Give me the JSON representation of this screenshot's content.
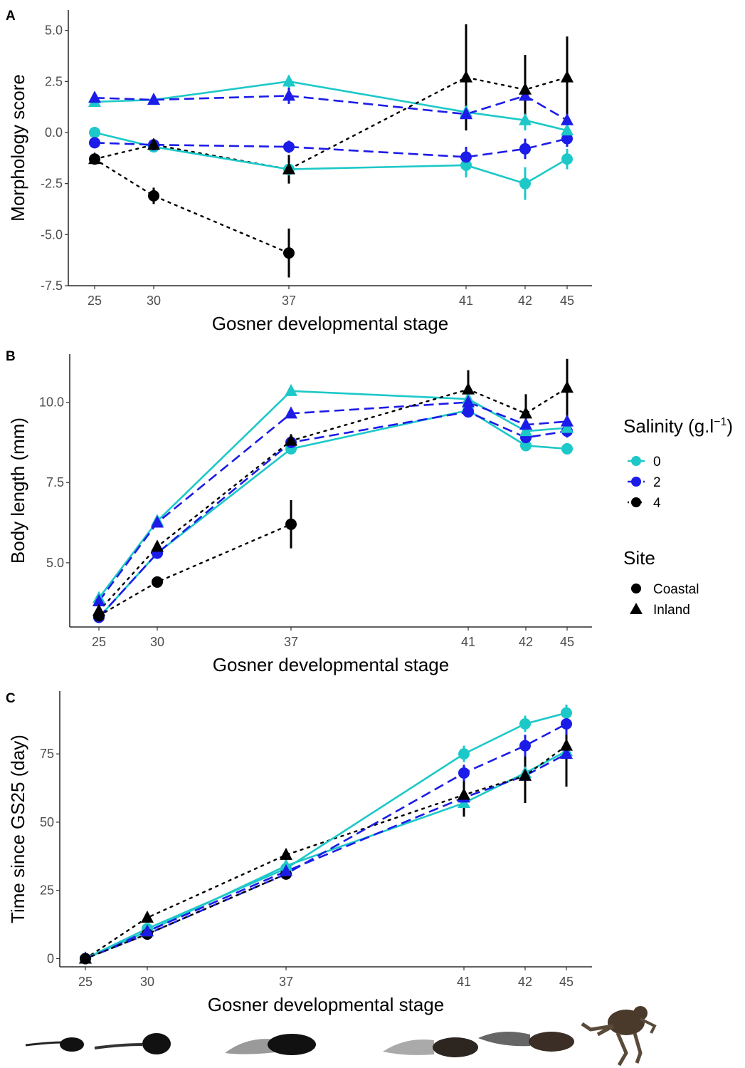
{
  "legend": {
    "salinity_title": "Salinity (g.l",
    "salinity_sup": "−1",
    "salinity_close": ")",
    "salinity_levels": [
      {
        "label": "0",
        "color": "#1dc8c8",
        "linestyle": "solid"
      },
      {
        "label": "2",
        "color": "#1c1ce8",
        "linestyle": "dashed"
      },
      {
        "label": "4",
        "color": "#000000",
        "linestyle": "dotted"
      }
    ],
    "site_title": "Site",
    "sites": [
      {
        "label": "Coastal",
        "shape": "circle"
      },
      {
        "label": "Inland",
        "shape": "triangle"
      }
    ]
  },
  "chart_data": [
    {
      "panel": "A",
      "type": "line",
      "xlabel": "Gosner developmental stage",
      "ylabel": "Morphology score",
      "x_ticks": [
        25,
        30,
        37,
        41,
        42,
        45
      ],
      "y_ticks": [
        5.0,
        2.5,
        0.0,
        -2.5,
        -5.0,
        -7.5
      ],
      "y_tick_labels": [
        "5.0",
        "2.5",
        "0.0",
        "-2.5",
        "-5.0",
        "-7.5"
      ],
      "ylim": [
        -7.5,
        6.0
      ],
      "series": [
        {
          "salinity": "0",
          "site": "Inland",
          "points": [
            [
              25,
              1.5,
              0.15
            ],
            [
              30,
              1.6,
              0.15
            ],
            [
              37,
              2.5,
              0.3
            ],
            [
              41,
              1.0,
              0.5
            ],
            [
              42,
              0.6,
              0.5
            ],
            [
              45,
              0.1,
              0.3
            ]
          ]
        },
        {
          "salinity": "2",
          "site": "Inland",
          "points": [
            [
              25,
              1.7,
              0.15
            ],
            [
              30,
              1.6,
              0.15
            ],
            [
              37,
              1.8,
              0.4
            ],
            [
              41,
              0.9,
              0.7
            ],
            [
              42,
              1.8,
              0.8
            ],
            [
              45,
              0.6,
              0.5
            ]
          ]
        },
        {
          "salinity": "4",
          "site": "Inland",
          "points": [
            [
              25,
              -1.3,
              0.2
            ],
            [
              30,
              -0.6,
              0.2
            ],
            [
              37,
              -1.8,
              0.7
            ],
            [
              41,
              2.7,
              2.6
            ],
            [
              42,
              2.1,
              1.7
            ],
            [
              45,
              2.7,
              2.0
            ]
          ]
        },
        {
          "salinity": "0",
          "site": "Coastal",
          "points": [
            [
              25,
              0.0,
              0.1
            ],
            [
              30,
              -0.7,
              0.15
            ],
            [
              37,
              -1.8,
              0.3
            ],
            [
              41,
              -1.6,
              0.6
            ],
            [
              42,
              -2.5,
              0.8
            ],
            [
              45,
              -1.3,
              0.5
            ]
          ]
        },
        {
          "salinity": "2",
          "site": "Coastal",
          "points": [
            [
              25,
              -0.5,
              0.15
            ],
            [
              30,
              -0.6,
              0.15
            ],
            [
              37,
              -0.7,
              0.3
            ],
            [
              41,
              -1.2,
              0.5
            ],
            [
              42,
              -0.8,
              0.5
            ],
            [
              45,
              -0.3,
              0.4
            ]
          ]
        },
        {
          "salinity": "4",
          "site": "Coastal",
          "points": [
            [
              25,
              -1.3,
              0.2
            ],
            [
              30,
              -3.1,
              0.4
            ],
            [
              37,
              -5.9,
              1.2
            ]
          ]
        }
      ]
    },
    {
      "panel": "B",
      "type": "line",
      "xlabel": "Gosner developmental stage",
      "ylabel": "Body length (mm)",
      "x_ticks": [
        25,
        30,
        37,
        41,
        42,
        45
      ],
      "y_ticks": [
        10.0,
        7.5,
        5.0
      ],
      "y_tick_labels": [
        "10.0",
        "7.5",
        "5.0"
      ],
      "ylim": [
        3.0,
        11.5
      ],
      "series": [
        {
          "salinity": "0",
          "site": "Inland",
          "points": [
            [
              25,
              3.9,
              0.1
            ],
            [
              30,
              6.3,
              0.1
            ],
            [
              37,
              10.35,
              0.1
            ],
            [
              41,
              10.1,
              0.15
            ],
            [
              42,
              9.1,
              0.2
            ],
            [
              45,
              9.2,
              0.25
            ]
          ]
        },
        {
          "salinity": "2",
          "site": "Inland",
          "points": [
            [
              25,
              3.8,
              0.1
            ],
            [
              30,
              6.25,
              0.1
            ],
            [
              37,
              9.65,
              0.15
            ],
            [
              41,
              10.0,
              0.15
            ],
            [
              42,
              9.3,
              0.25
            ],
            [
              45,
              9.4,
              0.3
            ]
          ]
        },
        {
          "salinity": "4",
          "site": "Inland",
          "points": [
            [
              25,
              3.5,
              0.1
            ],
            [
              30,
              5.5,
              0.15
            ],
            [
              37,
              8.8,
              0.2
            ],
            [
              41,
              10.4,
              0.6
            ],
            [
              42,
              9.65,
              0.6
            ],
            [
              45,
              10.45,
              0.9
            ]
          ]
        },
        {
          "salinity": "0",
          "site": "Coastal",
          "points": [
            [
              25,
              3.3,
              0.1
            ],
            [
              30,
              5.3,
              0.1
            ],
            [
              37,
              8.55,
              0.1
            ],
            [
              41,
              9.75,
              0.1
            ],
            [
              42,
              8.65,
              0.15
            ],
            [
              45,
              8.55,
              0.15
            ]
          ]
        },
        {
          "salinity": "2",
          "site": "Coastal",
          "points": [
            [
              25,
              3.3,
              0.1
            ],
            [
              30,
              5.3,
              0.1
            ],
            [
              37,
              8.75,
              0.15
            ],
            [
              41,
              9.7,
              0.15
            ],
            [
              42,
              8.9,
              0.2
            ],
            [
              45,
              9.1,
              0.2
            ]
          ]
        },
        {
          "salinity": "4",
          "site": "Coastal",
          "points": [
            [
              25,
              3.35,
              0.1
            ],
            [
              30,
              4.4,
              0.1
            ],
            [
              37,
              6.2,
              0.75
            ]
          ]
        }
      ]
    },
    {
      "panel": "C",
      "type": "line",
      "xlabel": "Gosner developmental stage",
      "ylabel": "Time since GS25 (day)",
      "x_ticks": [
        25,
        30,
        37,
        41,
        42,
        45
      ],
      "y_ticks": [
        75,
        50,
        25,
        0
      ],
      "y_tick_labels": [
        "75",
        "50",
        "25",
        "0"
      ],
      "ylim": [
        -3,
        98
      ],
      "series": [
        {
          "salinity": "0",
          "site": "Inland",
          "points": [
            [
              25,
              0,
              0.5
            ],
            [
              30,
              10,
              1
            ],
            [
              37,
              34,
              1.5
            ],
            [
              41,
              57,
              3
            ],
            [
              42,
              68,
              3
            ],
            [
              45,
              76,
              4
            ]
          ]
        },
        {
          "salinity": "2",
          "site": "Inland",
          "points": [
            [
              25,
              0,
              0.5
            ],
            [
              30,
              10,
              1
            ],
            [
              37,
              32,
              1.5
            ],
            [
              41,
              59,
              3
            ],
            [
              42,
              67,
              4
            ],
            [
              45,
              75,
              5
            ]
          ]
        },
        {
          "salinity": "4",
          "site": "Inland",
          "points": [
            [
              25,
              0,
              0.5
            ],
            [
              30,
              15,
              1.5
            ],
            [
              37,
              38,
              2
            ],
            [
              41,
              60,
              8
            ],
            [
              42,
              67,
              10
            ],
            [
              45,
              78,
              15
            ]
          ]
        },
        {
          "salinity": "0",
          "site": "Coastal",
          "points": [
            [
              25,
              0,
              0.5
            ],
            [
              30,
              11,
              1
            ],
            [
              37,
              33,
              2
            ],
            [
              41,
              75,
              3
            ],
            [
              42,
              86,
              3
            ],
            [
              45,
              90,
              3
            ]
          ]
        },
        {
          "salinity": "2",
          "site": "Coastal",
          "points": [
            [
              25,
              0,
              0.5
            ],
            [
              30,
              9,
              1
            ],
            [
              37,
              31,
              1.5
            ],
            [
              41,
              68,
              3
            ],
            [
              42,
              78,
              4
            ],
            [
              45,
              86,
              4
            ]
          ]
        },
        {
          "salinity": "4",
          "site": "Coastal",
          "points": [
            [
              25,
              0,
              0.5
            ],
            [
              30,
              9,
              1
            ],
            [
              37,
              31,
              1.5
            ]
          ]
        }
      ]
    }
  ]
}
